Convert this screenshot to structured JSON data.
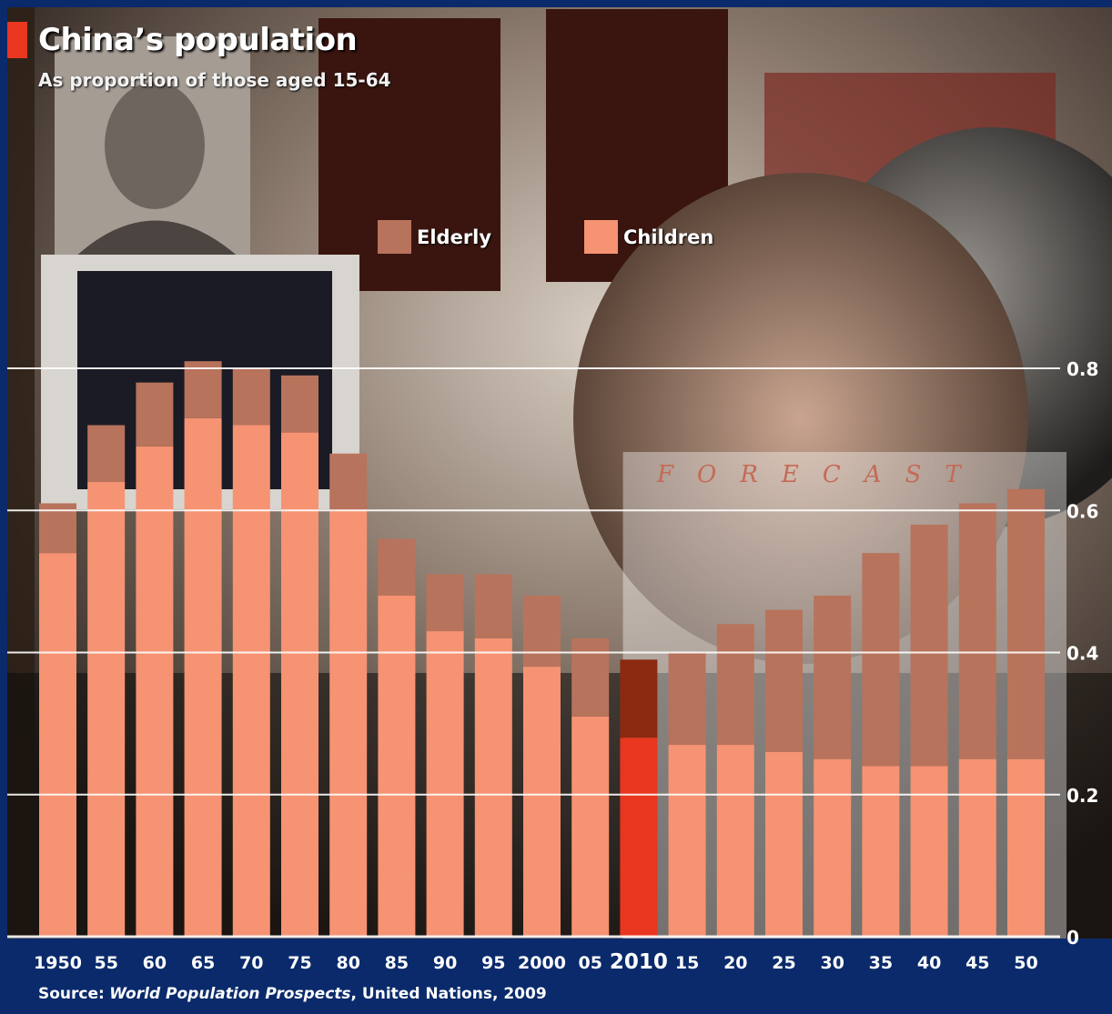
{
  "header": {
    "title": "China’s population",
    "subtitle": "As proportion of those aged 15-64"
  },
  "legend": [
    {
      "label": "Elderly",
      "color": "#b8735c"
    },
    {
      "label": "Children",
      "color": "#f59373"
    }
  ],
  "forecast_label": "FORECAST",
  "source": {
    "prefix": "Source:",
    "title": "World Population Prospects",
    "rest": ", United Nations, 2009"
  },
  "colors": {
    "background": "#0a2a6b",
    "children": "#f59373",
    "elderly": "#b8735c",
    "highlight_children": "#e8361f",
    "highlight_elderly": "#8b2a10",
    "title_accent": "#e8361f",
    "gridline": "#ffffff"
  },
  "chart_data": {
    "type": "bar",
    "stacked": true,
    "categories": [
      "1950",
      "55",
      "60",
      "65",
      "70",
      "75",
      "80",
      "85",
      "90",
      "95",
      "2000",
      "05",
      "2010",
      "15",
      "20",
      "25",
      "30",
      "35",
      "40",
      "45",
      "50"
    ],
    "highlight_category": "2010",
    "forecast_start": "15",
    "series": [
      {
        "name": "Children",
        "values": [
          0.54,
          0.64,
          0.69,
          0.73,
          0.72,
          0.71,
          0.6,
          0.48,
          0.43,
          0.42,
          0.38,
          0.31,
          0.28,
          0.27,
          0.27,
          0.26,
          0.25,
          0.24,
          0.24,
          0.25,
          0.25
        ]
      },
      {
        "name": "Elderly",
        "values": [
          0.07,
          0.08,
          0.09,
          0.08,
          0.08,
          0.08,
          0.08,
          0.08,
          0.08,
          0.09,
          0.1,
          0.11,
          0.11,
          0.13,
          0.17,
          0.2,
          0.23,
          0.3,
          0.34,
          0.36,
          0.38
        ]
      }
    ],
    "ylim": [
      0,
      0.8
    ],
    "yticks": [
      0,
      0.2,
      0.4,
      0.6,
      0.8
    ],
    "ytick_labels": [
      "0",
      "0.2",
      "0.4",
      "0.6",
      "0.8"
    ],
    "y_axis_position": "right",
    "grid": true
  }
}
